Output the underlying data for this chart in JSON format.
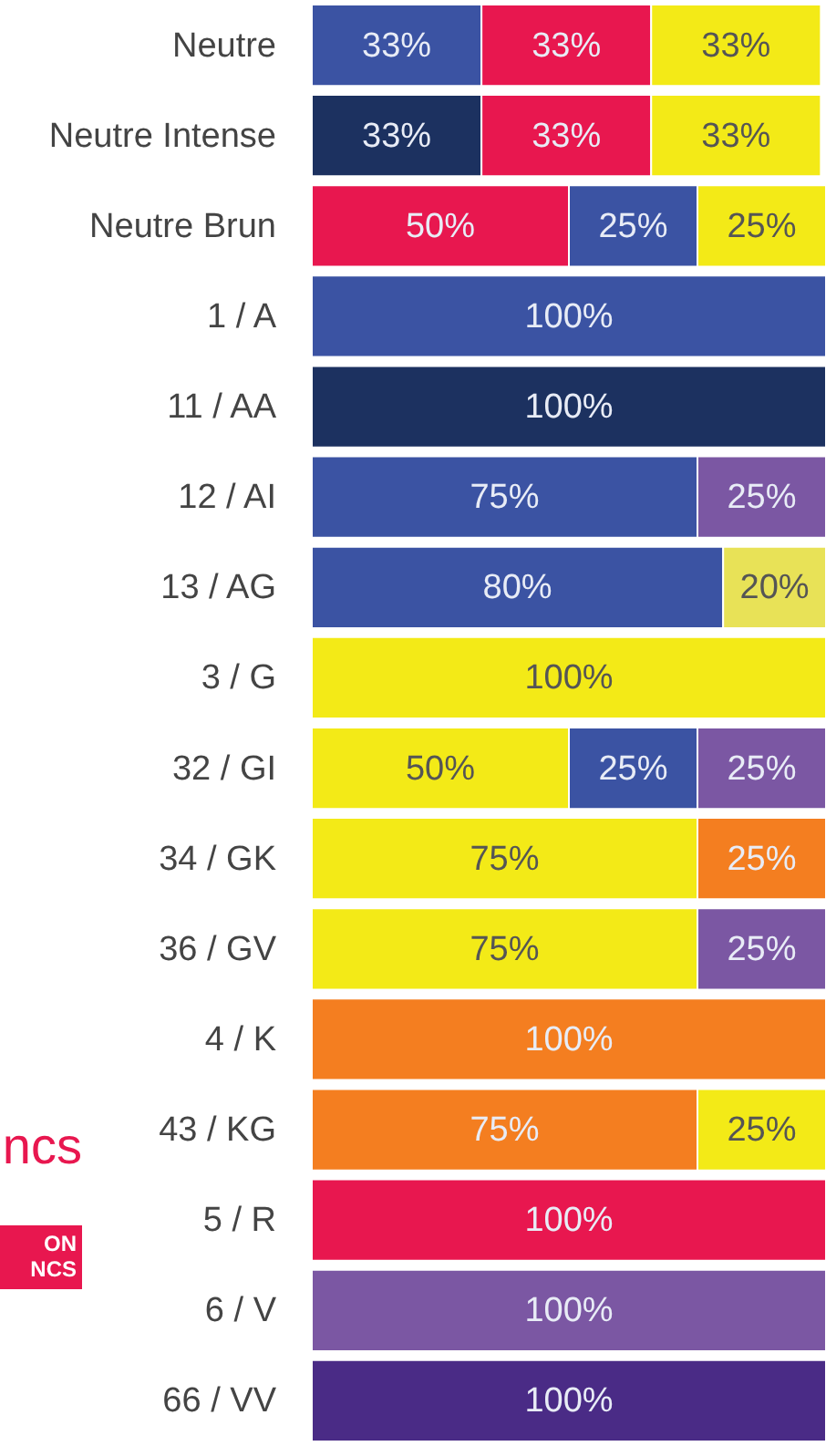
{
  "chart_data": {
    "type": "bar",
    "orientation": "horizontal",
    "stacked": true,
    "categories": [
      "Neutre",
      "Neutre Intense",
      "Neutre Brun",
      "1 / A",
      "11 / AA",
      "12 / AI",
      "13 / AG",
      "3 / G",
      "32 / GI",
      "34 / GK",
      "36 / GV",
      "4 / K",
      "43 / KG",
      "5 / R",
      "6 / V",
      "66 / VV"
    ],
    "series": [
      {
        "values": [
          33,
          33,
          50,
          100,
          100,
          75,
          80,
          100,
          50,
          75,
          75,
          100,
          75,
          100,
          100,
          100
        ],
        "colors": [
          "#3b53a3",
          "#1c3160",
          "#e8174f",
          "#3b53a3",
          "#1c3160",
          "#3b53a3",
          "#3b53a3",
          "#f3ea17",
          "#f3ea17",
          "#f3ea17",
          "#f3ea17",
          "#f47e20",
          "#f47e20",
          "#e8174f",
          "#7b57a3",
          "#4a2b86"
        ],
        "value_labels": [
          "33%",
          "33%",
          "50%",
          "100%",
          "100%",
          "75%",
          "80%",
          "100%",
          "50%",
          "75%",
          "75%",
          "100%",
          "75%",
          "100%",
          "100%",
          "100%"
        ]
      },
      {
        "values": [
          33,
          33,
          25,
          null,
          null,
          25,
          20,
          null,
          25,
          25,
          25,
          null,
          25,
          null,
          null,
          null
        ],
        "colors": [
          "#e8174f",
          "#e8174f",
          "#3b53a3",
          null,
          null,
          "#7b57a3",
          "#e8e257",
          null,
          "#3b53a3",
          "#f47e20",
          "#7b57a3",
          null,
          "#f3ea17",
          null,
          null,
          null
        ],
        "value_labels": [
          "33%",
          "33%",
          "25%",
          null,
          null,
          "25%",
          "20%",
          null,
          "25%",
          "25%",
          "25%",
          null,
          "25%",
          null,
          null,
          null
        ]
      },
      {
        "values": [
          33,
          33,
          25,
          null,
          null,
          null,
          null,
          null,
          25,
          null,
          null,
          null,
          null,
          null,
          null,
          null
        ],
        "colors": [
          "#f3ea17",
          "#f3ea17",
          "#f3ea17",
          null,
          null,
          null,
          null,
          null,
          "#7b57a3",
          null,
          null,
          null,
          null,
          null,
          null,
          null
        ],
        "value_labels": [
          "33%",
          "33%",
          "25%",
          null,
          null,
          null,
          null,
          null,
          "25%",
          null,
          null,
          null,
          null,
          null,
          null,
          null
        ]
      }
    ],
    "annotations": [
      "ncs",
      "ON NCS"
    ]
  }
}
